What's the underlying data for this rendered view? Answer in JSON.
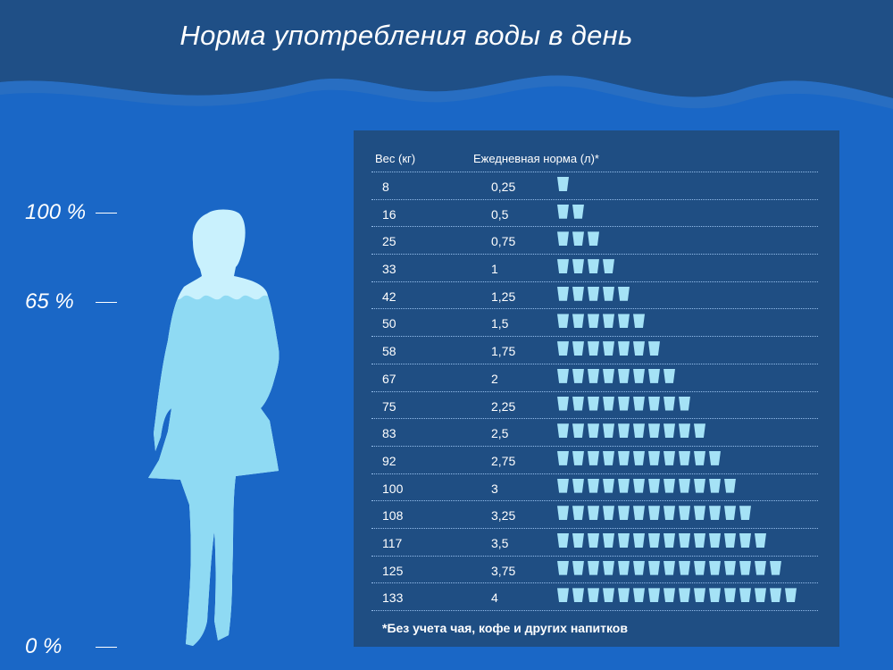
{
  "title": "Норма  употребления воды в день",
  "levels": [
    {
      "label": "100 %"
    },
    {
      "label": "65 %"
    },
    {
      "label": "0 %"
    }
  ],
  "table": {
    "col_weight": "Вес (кг)",
    "col_norm": "Ежедневная норма (л)*",
    "rows": [
      {
        "weight": "8",
        "norm": "0,25",
        "cups": 1
      },
      {
        "weight": "16",
        "norm": "0,5",
        "cups": 2
      },
      {
        "weight": "25",
        "norm": "0,75",
        "cups": 3
      },
      {
        "weight": "33",
        "norm": "1",
        "cups": 4
      },
      {
        "weight": "42",
        "norm": "1,25",
        "cups": 5
      },
      {
        "weight": "50",
        "norm": "1,5",
        "cups": 6
      },
      {
        "weight": "58",
        "norm": "1,75",
        "cups": 7
      },
      {
        "weight": "67",
        "norm": "2",
        "cups": 8
      },
      {
        "weight": "75",
        "norm": "2,25",
        "cups": 9
      },
      {
        "weight": "83",
        "norm": "2,5",
        "cups": 10
      },
      {
        "weight": "92",
        "norm": "2,75",
        "cups": 11
      },
      {
        "weight": "100",
        "norm": "3",
        "cups": 12
      },
      {
        "weight": "108",
        "norm": "3,25",
        "cups": 13
      },
      {
        "weight": "117",
        "norm": "3,5",
        "cups": 14
      },
      {
        "weight": "125",
        "norm": "3,75",
        "cups": 15
      },
      {
        "weight": "133",
        "norm": "4",
        "cups": 16
      }
    ],
    "footnote": "*Без учета чая, кофе и других напитков"
  },
  "icons": {
    "cup": "water-glass-icon",
    "figure": "woman-silhouette-icon"
  },
  "colors": {
    "background": "#1a67c6",
    "header_band": "#1f4f86",
    "panel": "#1f4e83",
    "water": "#a5e2f6",
    "silhouette": "#c9f1fd"
  }
}
